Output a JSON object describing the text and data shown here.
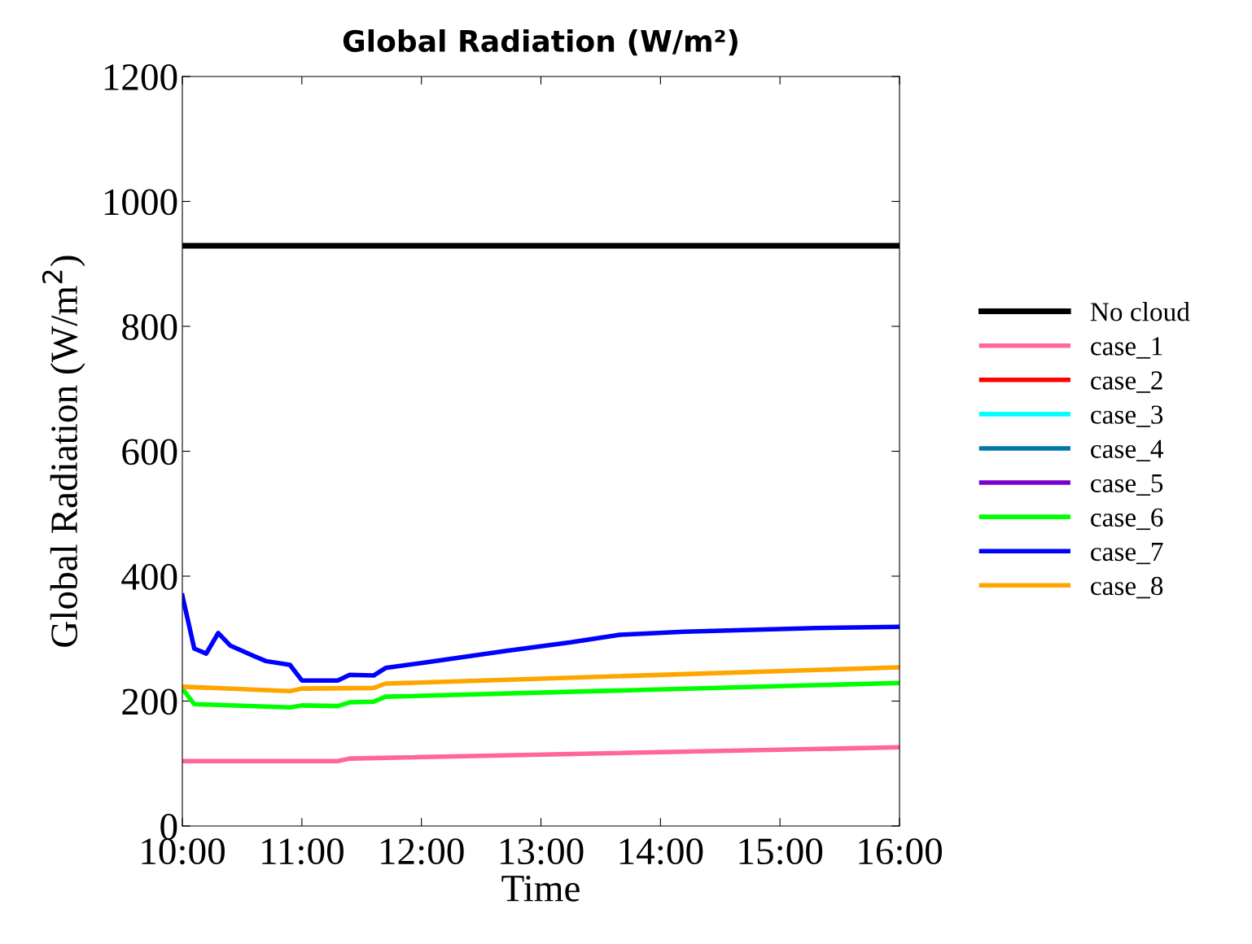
{
  "chart_data": {
    "type": "line",
    "title": "Global Radiation (W/m²)",
    "xlabel": "Time",
    "ylabel": "Global Radiation (W/m$^{2}$)",
    "xlim": [
      10,
      16
    ],
    "xticks": [
      {
        "value": 10,
        "label": "10:00"
      },
      {
        "value": 11,
        "label": "11:00"
      },
      {
        "value": 12,
        "label": "12:00"
      },
      {
        "value": 13,
        "label": "13:00"
      },
      {
        "value": 14,
        "label": "14:00"
      },
      {
        "value": 15,
        "label": "15:00"
      },
      {
        "value": 16,
        "label": "16:00"
      }
    ],
    "ylim": [
      0,
      1200
    ],
    "yticks": [
      0,
      200,
      400,
      600,
      800,
      1000,
      1200
    ],
    "grid": false,
    "legend": "right",
    "line_style": "solid",
    "marker": "none",
    "series": [
      {
        "name": "No cloud",
        "color": "#000000",
        "x": [
          10,
          16
        ],
        "values": [
          929,
          929
        ]
      },
      {
        "name": "case_1",
        "color": "#ff6699",
        "x": [
          10,
          11.3,
          11.4,
          16
        ],
        "values": [
          104,
          104,
          108,
          126
        ]
      },
      {
        "name": "case_2",
        "color": "#ff0000"
      },
      {
        "name": "case_3",
        "color": "#00ffff"
      },
      {
        "name": "case_4",
        "color": "#0077aa"
      },
      {
        "name": "case_5",
        "color": "#7700cc"
      },
      {
        "name": "case_6",
        "color": "#00ff00",
        "x": [
          10,
          10.1,
          10.9,
          11.0,
          11.3,
          11.4,
          11.6,
          11.7,
          16
        ],
        "values": [
          220,
          195,
          190,
          193,
          192,
          198,
          199,
          207,
          229
        ]
      },
      {
        "name": "case_7",
        "color": "#0000ff",
        "x": [
          10,
          10.1,
          10.2,
          10.3,
          10.4,
          10.6,
          10.7,
          10.9,
          11.0,
          11.3,
          11.4,
          11.6,
          11.7,
          12,
          12.7,
          13.25,
          13.65,
          14.2,
          15.3,
          16
        ],
        "values": [
          369,
          284,
          276,
          309,
          289,
          272,
          264,
          258,
          233,
          233,
          242,
          241,
          253,
          261,
          280,
          294,
          306,
          311,
          317,
          319
        ]
      },
      {
        "name": "case_8",
        "color": "#ffa500",
        "x": [
          10,
          10.9,
          11.0,
          11.6,
          11.7,
          16
        ],
        "values": [
          223,
          216,
          220,
          221,
          228,
          254
        ]
      }
    ]
  }
}
